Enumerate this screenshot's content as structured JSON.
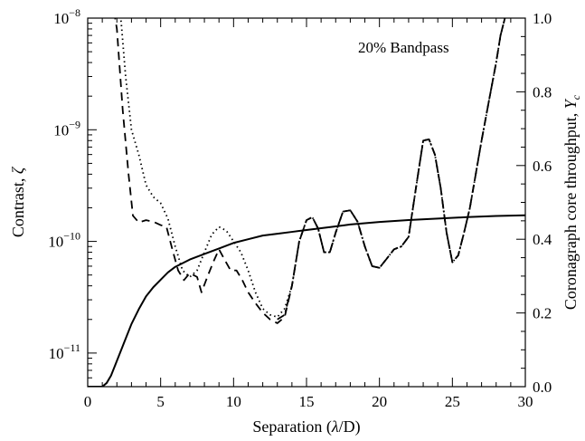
{
  "chart_data": {
    "type": "line",
    "annotation": "20% Bandpass",
    "xlabel_parts": [
      "Separation (",
      "λ",
      "/D)"
    ],
    "ylabel_left_parts": [
      "Contrast, ",
      "ζ"
    ],
    "ylabel_right_parts": [
      "Coronagraph core throughput, ",
      "Υ",
      "c"
    ],
    "x_axis": {
      "range": [
        0,
        30
      ],
      "ticks": [
        0,
        5,
        10,
        15,
        20,
        25,
        30
      ],
      "minor_step": 1
    },
    "y_left": {
      "scale": "log",
      "range": [
        5e-12,
        1e-08
      ],
      "ticks": [
        {
          "value": 1e-11,
          "base": "10",
          "exp": "−11"
        },
        {
          "value": 1e-10,
          "base": "10",
          "exp": "−10"
        },
        {
          "value": 1e-09,
          "base": "10",
          "exp": "−9"
        },
        {
          "value": 1e-08,
          "base": "10",
          "exp": "−8"
        }
      ]
    },
    "y_right": {
      "scale": "linear",
      "range": [
        0,
        1
      ],
      "ticks": [
        "0.0",
        "0.2",
        "0.4",
        "0.6",
        "0.8",
        "1.0"
      ],
      "minor_step": 0.05
    },
    "grid": false,
    "series": [
      {
        "style": "dashed",
        "axis": "left",
        "points": [
          [
            1.5,
            2e-08
          ],
          [
            2.0,
            8e-09
          ],
          [
            2.4,
            1.5e-09
          ],
          [
            2.8,
            4e-10
          ],
          [
            3.1,
            1.7e-10
          ],
          [
            3.5,
            1.48e-10
          ],
          [
            4.0,
            1.55e-10
          ],
          [
            4.5,
            1.5e-10
          ],
          [
            5.0,
            1.4e-10
          ],
          [
            5.4,
            1.35e-10
          ],
          [
            5.8,
            8.5e-11
          ],
          [
            6.2,
            5.5e-11
          ],
          [
            6.6,
            4.5e-11
          ],
          [
            7.0,
            5.2e-11
          ],
          [
            7.5,
            4.8e-11
          ],
          [
            7.8,
            3.5e-11
          ],
          [
            8.2,
            4.8e-11
          ],
          [
            8.6,
            6.5e-11
          ],
          [
            9.0,
            8.5e-11
          ],
          [
            9.4,
            6.8e-11
          ],
          [
            9.8,
            5.5e-11
          ],
          [
            10.2,
            5.5e-11
          ],
          [
            10.6,
            4.5e-11
          ],
          [
            11.0,
            3.5e-11
          ],
          [
            11.5,
            2.8e-11
          ],
          [
            12.0,
            2.3e-11
          ],
          [
            12.5,
            2e-11
          ],
          [
            13.0,
            1.85e-11
          ],
          [
            13.5,
            2.1e-11
          ],
          [
            14.0,
            4e-11
          ],
          [
            14.5,
            1e-10
          ],
          [
            15.0,
            1.55e-10
          ],
          [
            15.4,
            1.65e-10
          ],
          [
            15.8,
            1.3e-10
          ],
          [
            16.2,
            8e-11
          ],
          [
            16.6,
            8e-11
          ],
          [
            17.0,
            1.2e-10
          ],
          [
            17.5,
            1.85e-10
          ],
          [
            18.0,
            1.9e-10
          ],
          [
            18.5,
            1.5e-10
          ],
          [
            19.0,
            9e-11
          ],
          [
            19.5,
            6e-11
          ],
          [
            20.0,
            5.8e-11
          ],
          [
            20.5,
            7e-11
          ],
          [
            21.0,
            8.5e-11
          ],
          [
            21.5,
            9e-11
          ],
          [
            22.0,
            1.1e-10
          ],
          [
            22.5,
            3e-10
          ],
          [
            23.0,
            8e-10
          ],
          [
            23.4,
            8.2e-10
          ],
          [
            23.8,
            6e-10
          ],
          [
            24.2,
            3e-10
          ],
          [
            24.6,
            1.2e-10
          ],
          [
            25.0,
            6.5e-11
          ],
          [
            25.4,
            7.5e-11
          ],
          [
            25.8,
            1.2e-10
          ],
          [
            26.2,
            2e-10
          ],
          [
            26.6,
            4e-10
          ],
          [
            27.0,
            8e-10
          ],
          [
            27.5,
            1.8e-09
          ],
          [
            28.0,
            4e-09
          ],
          [
            28.3,
            7e-09
          ],
          [
            28.6,
            1e-08
          ]
        ]
      },
      {
        "style": "dotted",
        "axis": "left",
        "points": [
          [
            2.0,
            2e-08
          ],
          [
            2.3,
            9e-09
          ],
          [
            2.6,
            3e-09
          ],
          [
            3.0,
            1e-09
          ],
          [
            3.5,
            6e-10
          ],
          [
            4.0,
            3.2e-10
          ],
          [
            4.5,
            2.5e-10
          ],
          [
            5.0,
            2.2e-10
          ],
          [
            5.5,
            1.6e-10
          ],
          [
            6.0,
            9e-11
          ],
          [
            6.5,
            5.5e-11
          ],
          [
            7.0,
            4.8e-11
          ],
          [
            7.5,
            5.5e-11
          ],
          [
            8.0,
            8e-11
          ],
          [
            8.5,
            1.15e-10
          ],
          [
            9.0,
            1.35e-10
          ],
          [
            9.5,
            1.25e-10
          ],
          [
            10.0,
            1e-10
          ],
          [
            10.5,
            8e-11
          ],
          [
            11.0,
            5.5e-11
          ],
          [
            11.5,
            3.5e-11
          ],
          [
            12.0,
            2.5e-11
          ],
          [
            12.5,
            2.2e-11
          ],
          [
            13.0,
            2.1e-11
          ],
          [
            13.5,
            2.5e-11
          ],
          [
            14.0,
            4e-11
          ],
          [
            14.5,
            1e-10
          ],
          [
            15.0,
            1.55e-10
          ],
          [
            15.4,
            1.65e-10
          ],
          [
            15.8,
            1.3e-10
          ],
          [
            16.2,
            8e-11
          ],
          [
            16.6,
            8e-11
          ],
          [
            17.0,
            1.2e-10
          ],
          [
            17.5,
            1.85e-10
          ],
          [
            18.0,
            1.9e-10
          ],
          [
            18.5,
            1.5e-10
          ],
          [
            19.0,
            9e-11
          ],
          [
            19.5,
            6e-11
          ],
          [
            20.0,
            5.8e-11
          ],
          [
            20.5,
            7e-11
          ],
          [
            21.0,
            8.5e-11
          ],
          [
            21.5,
            9e-11
          ],
          [
            22.0,
            1.1e-10
          ],
          [
            22.5,
            3e-10
          ],
          [
            23.0,
            8e-10
          ],
          [
            23.4,
            8.2e-10
          ],
          [
            23.8,
            6e-10
          ],
          [
            24.2,
            3e-10
          ],
          [
            24.6,
            1.2e-10
          ],
          [
            25.0,
            6.5e-11
          ],
          [
            25.4,
            7.5e-11
          ],
          [
            25.8,
            1.2e-10
          ],
          [
            26.2,
            2e-10
          ],
          [
            26.6,
            4e-10
          ],
          [
            27.0,
            8e-10
          ],
          [
            27.5,
            1.8e-09
          ],
          [
            28.0,
            4e-09
          ],
          [
            28.3,
            7e-09
          ],
          [
            28.6,
            1e-08
          ]
        ]
      },
      {
        "style": "dash-dot",
        "axis": "left",
        "points": [
          [
            13.0,
            2e-11
          ],
          [
            13.5,
            2.2e-11
          ],
          [
            14.0,
            4e-11
          ],
          [
            14.5,
            1e-10
          ],
          [
            15.0,
            1.55e-10
          ],
          [
            15.4,
            1.65e-10
          ],
          [
            15.8,
            1.3e-10
          ],
          [
            16.2,
            8e-11
          ],
          [
            16.6,
            8e-11
          ],
          [
            17.0,
            1.2e-10
          ],
          [
            17.5,
            1.85e-10
          ],
          [
            18.0,
            1.9e-10
          ],
          [
            18.5,
            1.5e-10
          ],
          [
            19.0,
            9e-11
          ],
          [
            19.5,
            6e-11
          ],
          [
            20.0,
            5.8e-11
          ],
          [
            20.5,
            7e-11
          ],
          [
            21.0,
            8.5e-11
          ],
          [
            21.5,
            9e-11
          ],
          [
            22.0,
            1.1e-10
          ],
          [
            22.5,
            3e-10
          ],
          [
            23.0,
            8e-10
          ],
          [
            23.4,
            8.2e-10
          ],
          [
            23.8,
            6e-10
          ],
          [
            24.2,
            3e-10
          ],
          [
            24.6,
            1.2e-10
          ],
          [
            25.0,
            6.5e-11
          ],
          [
            25.4,
            7.5e-11
          ],
          [
            25.8,
            1.2e-10
          ],
          [
            26.2,
            2e-10
          ],
          [
            26.6,
            4e-10
          ],
          [
            27.0,
            8e-10
          ],
          [
            27.5,
            1.8e-09
          ],
          [
            28.0,
            4e-09
          ],
          [
            28.3,
            7e-09
          ],
          [
            28.6,
            1e-08
          ]
        ]
      },
      {
        "style": "solid",
        "axis": "right",
        "points": [
          [
            0,
            0.0
          ],
          [
            1.0,
            0.0
          ],
          [
            1.3,
            0.01
          ],
          [
            1.6,
            0.03
          ],
          [
            2.0,
            0.07
          ],
          [
            2.5,
            0.12
          ],
          [
            3.0,
            0.17
          ],
          [
            3.5,
            0.21
          ],
          [
            4.0,
            0.245
          ],
          [
            4.5,
            0.27
          ],
          [
            5.0,
            0.29
          ],
          [
            5.5,
            0.31
          ],
          [
            6.0,
            0.325
          ],
          [
            7.0,
            0.345
          ],
          [
            8.0,
            0.36
          ],
          [
            9.0,
            0.375
          ],
          [
            10.0,
            0.39
          ],
          [
            11.0,
            0.4
          ],
          [
            12.0,
            0.41
          ],
          [
            13.0,
            0.415
          ],
          [
            14.0,
            0.42
          ],
          [
            15.0,
            0.425
          ],
          [
            16.0,
            0.43
          ],
          [
            17.0,
            0.435
          ],
          [
            18.0,
            0.44
          ],
          [
            20.0,
            0.447
          ],
          [
            22.0,
            0.452
          ],
          [
            24.0,
            0.456
          ],
          [
            26.0,
            0.46
          ],
          [
            28.0,
            0.463
          ],
          [
            30.0,
            0.465
          ]
        ]
      }
    ]
  }
}
